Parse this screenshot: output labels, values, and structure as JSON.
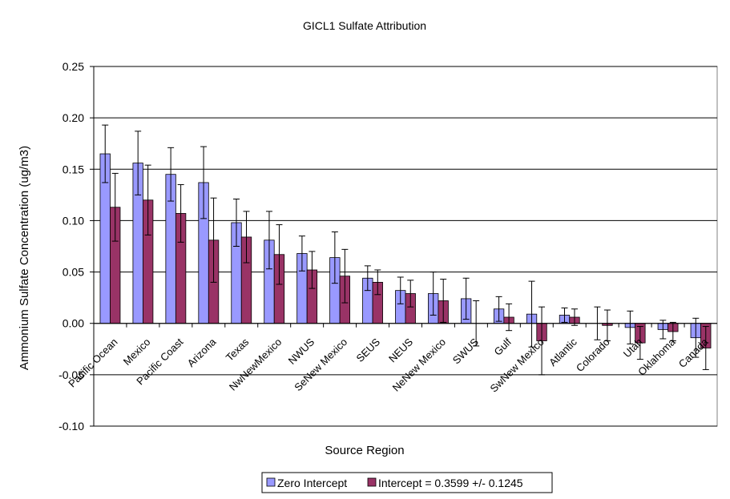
{
  "chart_data": {
    "type": "bar",
    "title": "GICL1 Sulfate Attribution",
    "xlabel": "Source Region",
    "ylabel": "Ammonium Sulfate Concentration (ug/m3)",
    "ylim": [
      -0.1,
      0.25
    ],
    "ytick_labels": [
      "-0.10",
      "-0.05",
      "0.00",
      "0.05",
      "0.10",
      "0.15",
      "0.20",
      "0.25"
    ],
    "ytick_values": [
      -0.1,
      -0.05,
      0.0,
      0.05,
      0.1,
      0.15,
      0.2,
      0.25
    ],
    "grid": true,
    "legend_position": "bottom",
    "categories": [
      "Pacific Ocean",
      "Mexico",
      "Pacific Coast",
      "Arizona",
      "Texas",
      "NwNewMexico",
      "NWUS",
      "SeNew Mexico",
      "SEUS",
      "NEUS",
      "NeNew Mexico",
      "SWUS",
      "Gulf",
      "SwNew Mexico",
      "Atlantic",
      "Colorado",
      "Utah",
      "Oklahoma",
      "Canada"
    ],
    "series": [
      {
        "name": "Zero Intercept",
        "color": "#9999FF",
        "values": [
          0.165,
          0.156,
          0.145,
          0.137,
          0.098,
          0.081,
          0.068,
          0.064,
          0.044,
          0.032,
          0.029,
          0.024,
          0.014,
          0.009,
          0.008,
          0.0,
          -0.004,
          -0.006,
          -0.014
        ],
        "error": [
          0.028,
          0.031,
          0.026,
          0.035,
          0.023,
          0.028,
          0.017,
          0.025,
          0.012,
          0.013,
          0.021,
          0.02,
          0.012,
          0.032,
          0.007,
          0.016,
          0.016,
          0.009,
          0.019
        ]
      },
      {
        "name": "Intercept = 0.3599 +/- 0.1245",
        "color": "#993366",
        "values": [
          0.113,
          0.12,
          0.107,
          0.081,
          0.084,
          0.067,
          0.052,
          0.046,
          0.04,
          0.029,
          0.022,
          0.0,
          0.006,
          -0.017,
          0.006,
          -0.002,
          -0.019,
          -0.008,
          -0.024
        ],
        "error": [
          0.033,
          0.034,
          0.028,
          0.041,
          0.025,
          0.029,
          0.018,
          0.026,
          0.012,
          0.013,
          0.021,
          0.022,
          0.013,
          0.033,
          0.008,
          0.015,
          0.016,
          0.009,
          0.021
        ]
      }
    ]
  }
}
